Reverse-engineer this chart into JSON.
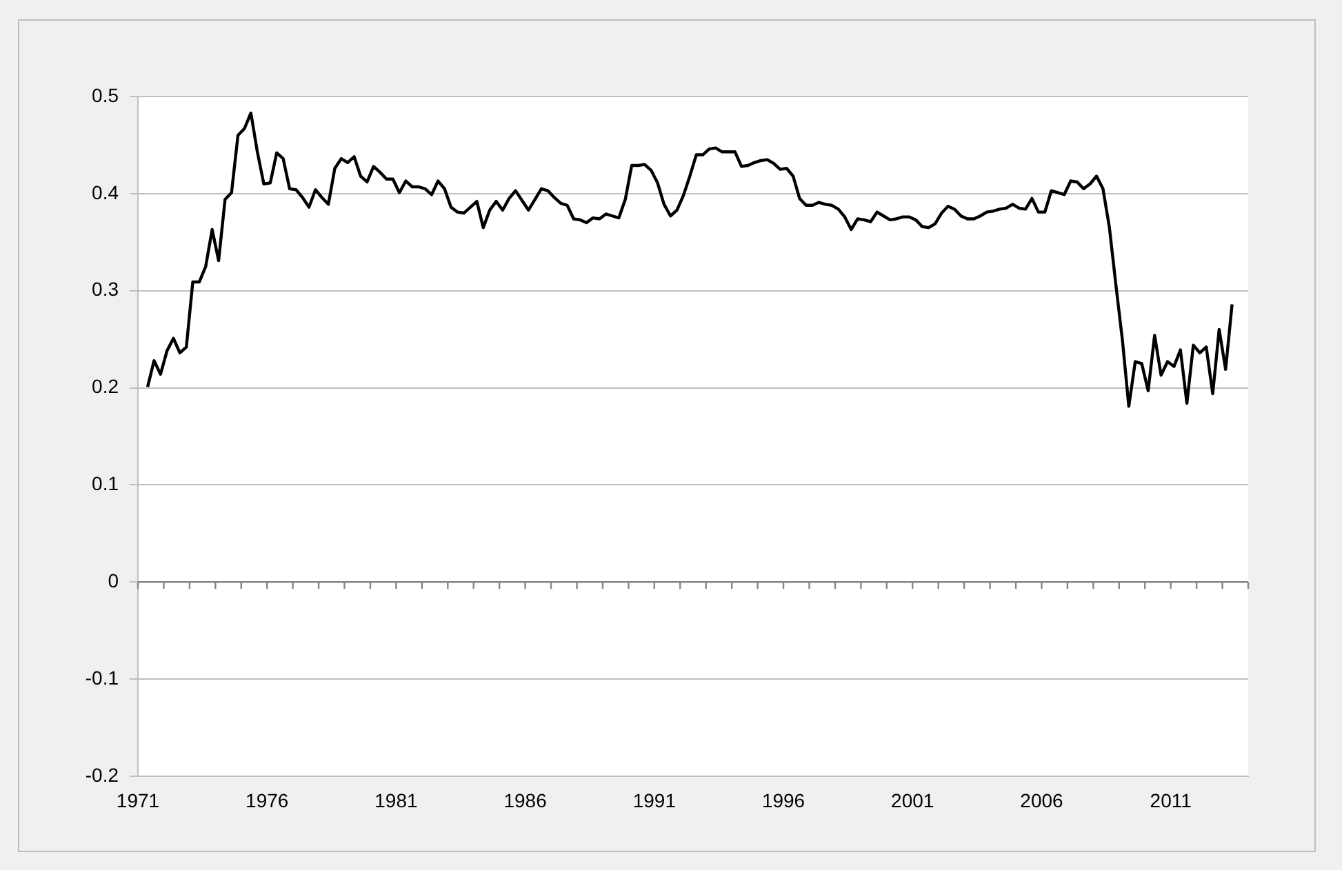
{
  "chart_data": {
    "type": "line",
    "x": [
      1971.375,
      1971.625,
      1971.875,
      1972.125,
      1972.375,
      1972.625,
      1972.875,
      1973.125,
      1973.375,
      1973.625,
      1973.875,
      1974.125,
      1974.375,
      1974.625,
      1974.875,
      1975.125,
      1975.375,
      1975.625,
      1975.875,
      1976.125,
      1976.375,
      1976.625,
      1976.875,
      1977.125,
      1977.375,
      1977.625,
      1977.875,
      1978.125,
      1978.375,
      1978.625,
      1978.875,
      1979.125,
      1979.375,
      1979.625,
      1979.875,
      1980.125,
      1980.375,
      1980.625,
      1980.875,
      1981.125,
      1981.375,
      1981.625,
      1981.875,
      1982.125,
      1982.375,
      1982.625,
      1982.875,
      1983.125,
      1983.375,
      1983.625,
      1983.875,
      1984.125,
      1984.375,
      1984.625,
      1984.875,
      1985.125,
      1985.375,
      1985.625,
      1985.875,
      1986.125,
      1986.375,
      1986.625,
      1986.875,
      1987.125,
      1987.375,
      1987.625,
      1987.875,
      1988.125,
      1988.375,
      1988.625,
      1988.875,
      1989.125,
      1989.375,
      1989.625,
      1989.875,
      1990.125,
      1990.375,
      1990.625,
      1990.875,
      1991.125,
      1991.375,
      1991.625,
      1991.875,
      1992.125,
      1992.375,
      1992.625,
      1992.875,
      1993.125,
      1993.375,
      1993.625,
      1993.875,
      1994.125,
      1994.375,
      1994.625,
      1994.875,
      1995.125,
      1995.375,
      1995.625,
      1995.875,
      1996.125,
      1996.375,
      1996.625,
      1996.875,
      1997.125,
      1997.375,
      1997.625,
      1997.875,
      1998.125,
      1998.375,
      1998.625,
      1998.875,
      1999.125,
      1999.375,
      1999.625,
      1999.875,
      2000.125,
      2000.375,
      2000.625,
      2000.875,
      2001.125,
      2001.375,
      2001.625,
      2001.875,
      2002.125,
      2002.375,
      2002.625,
      2002.875,
      2003.125,
      2003.375,
      2003.625,
      2003.875,
      2004.125,
      2004.375,
      2004.625,
      2004.875,
      2005.125,
      2005.375,
      2005.625,
      2005.875,
      2006.125,
      2006.375,
      2006.625,
      2006.875,
      2007.125,
      2007.375,
      2007.625,
      2007.875,
      2008.125,
      2008.375,
      2008.625,
      2008.875,
      2009.125,
      2009.375,
      2009.625,
      2009.875,
      2010.125,
      2010.375,
      2010.625,
      2010.875,
      2011.125,
      2011.375,
      2011.625,
      2011.875,
      2012.125,
      2012.375,
      2012.625,
      2012.875,
      2013.125,
      2013.375
    ],
    "series": [
      {
        "color": "#000000",
        "values": [
          0.201,
          0.228,
          0.214,
          0.238,
          0.251,
          0.236,
          0.242,
          0.309,
          0.309,
          0.325,
          0.363,
          0.331,
          0.394,
          0.401,
          0.46,
          0.467,
          0.483,
          0.443,
          0.41,
          0.411,
          0.442,
          0.436,
          0.405,
          0.404,
          0.396,
          0.386,
          0.404,
          0.396,
          0.389,
          0.426,
          0.436,
          0.432,
          0.438,
          0.418,
          0.412,
          0.428,
          0.422,
          0.415,
          0.415,
          0.401,
          0.413,
          0.407,
          0.407,
          0.405,
          0.399,
          0.413,
          0.405,
          0.386,
          0.381,
          0.38,
          0.386,
          0.392,
          0.365,
          0.383,
          0.392,
          0.383,
          0.395,
          0.403,
          0.393,
          0.383,
          0.394,
          0.405,
          0.403,
          0.396,
          0.39,
          0.388,
          0.374,
          0.373,
          0.37,
          0.375,
          0.374,
          0.379,
          0.377,
          0.375,
          0.394,
          0.429,
          0.429,
          0.43,
          0.424,
          0.411,
          0.389,
          0.377,
          0.383,
          0.398,
          0.418,
          0.44,
          0.44,
          0.446,
          0.447,
          0.443,
          0.443,
          0.443,
          0.428,
          0.429,
          0.432,
          0.434,
          0.435,
          0.431,
          0.425,
          0.426,
          0.418,
          0.395,
          0.388,
          0.388,
          0.391,
          0.389,
          0.388,
          0.384,
          0.376,
          0.363,
          0.374,
          0.373,
          0.371,
          0.381,
          0.377,
          0.373,
          0.374,
          0.376,
          0.376,
          0.373,
          0.366,
          0.365,
          0.369,
          0.38,
          0.387,
          0.384,
          0.377,
          0.374,
          0.374,
          0.377,
          0.381,
          0.382,
          0.384,
          0.385,
          0.389,
          0.385,
          0.384,
          0.395,
          0.381,
          0.381,
          0.403,
          0.401,
          0.399,
          0.413,
          0.412,
          0.405,
          0.41,
          0.418,
          0.405,
          0.365,
          0.306,
          0.25,
          0.181,
          0.227,
          0.225,
          0.197,
          0.254,
          0.213,
          0.227,
          0.222,
          0.239,
          0.184,
          0.244,
          0.236,
          0.242,
          0.194,
          0.26,
          0.219,
          0.286
        ]
      }
    ],
    "xlim": [
      1971,
      2014
    ],
    "xticks": [
      1971,
      {
        "value": 1972,
        "label": null
      },
      {
        "value": 1973,
        "label": null
      },
      {
        "value": 1974,
        "label": null
      },
      {
        "value": 1975,
        "label": null
      },
      1976,
      {
        "value": 1977,
        "label": null
      },
      {
        "value": 1978,
        "label": null
      },
      {
        "value": 1979,
        "label": null
      },
      {
        "value": 1980,
        "label": null
      },
      1981,
      {
        "value": 1982,
        "label": null
      },
      {
        "value": 1983,
        "label": null
      },
      {
        "value": 1984,
        "label": null
      },
      {
        "value": 1985,
        "label": null
      },
      1986,
      {
        "value": 1987,
        "label": null
      },
      {
        "value": 1988,
        "label": null
      },
      {
        "value": 1989,
        "label": null
      },
      {
        "value": 1990,
        "label": null
      },
      1991,
      {
        "value": 1992,
        "label": null
      },
      {
        "value": 1993,
        "label": null
      },
      {
        "value": 1994,
        "label": null
      },
      {
        "value": 1995,
        "label": null
      },
      1996,
      {
        "value": 1997,
        "label": null
      },
      {
        "value": 1998,
        "label": null
      },
      {
        "value": 1999,
        "label": null
      },
      {
        "value": 2000,
        "label": null
      },
      2001,
      {
        "value": 2002,
        "label": null
      },
      {
        "value": 2003,
        "label": null
      },
      {
        "value": 2004,
        "label": null
      },
      {
        "value": 2005,
        "label": null
      },
      2006,
      {
        "value": 2007,
        "label": null
      },
      {
        "value": 2008,
        "label": null
      },
      {
        "value": 2009,
        "label": null
      },
      {
        "value": 2010,
        "label": null
      },
      2011,
      {
        "value": 2012,
        "label": null
      },
      {
        "value": 2013,
        "label": null
      },
      {
        "value": 2014,
        "label": null
      }
    ],
    "ylim": [
      -0.2,
      0.5
    ],
    "yticks": [
      -0.2,
      -0.1,
      0,
      0.1,
      0.2,
      0.3,
      0.4,
      0.5
    ],
    "grid": "y",
    "marker": "none",
    "line_style": "solid"
  }
}
